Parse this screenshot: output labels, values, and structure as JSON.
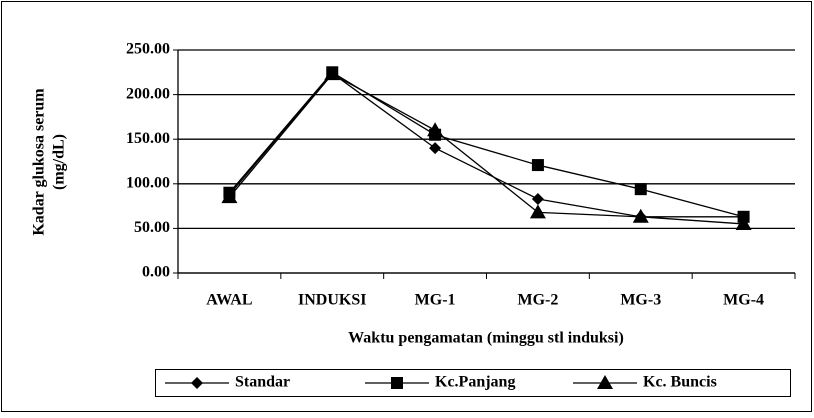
{
  "chart_data": {
    "type": "line",
    "x_label": "Waktu pengamatan (minggu stl induksi)",
    "y_label": [
      "Kadar glukosa serum",
      "(mg/dL)"
    ],
    "categories": [
      "AWAL",
      "INDUKSI",
      "MG-1",
      "MG-2",
      "MG-3",
      "MG-4"
    ],
    "series": [
      {
        "name": "Standar",
        "color": "#000000",
        "marker": "diamond",
        "values": [
          88,
          224,
          140,
          83,
          63,
          63
        ]
      },
      {
        "name": "Kc.Panjang",
        "color": "#000000",
        "marker": "square",
        "values": [
          90,
          225,
          155,
          121,
          94,
          63
        ]
      },
      {
        "name": "Kc. Buncis",
        "color": "#000000",
        "marker": "triangle",
        "values": [
          85,
          223,
          160,
          68,
          63,
          55
        ]
      }
    ],
    "ylim": [
      0,
      250
    ],
    "yticks": [
      {
        "value": 0,
        "label": "0.00"
      },
      {
        "value": 50,
        "label": "50.00"
      },
      {
        "value": 100,
        "label": "100.00"
      },
      {
        "value": 150,
        "label": "150.00"
      },
      {
        "value": 200,
        "label": "200.00"
      },
      {
        "value": 250,
        "label": "250.00"
      }
    ],
    "grid": true,
    "legend": "bottom"
  }
}
